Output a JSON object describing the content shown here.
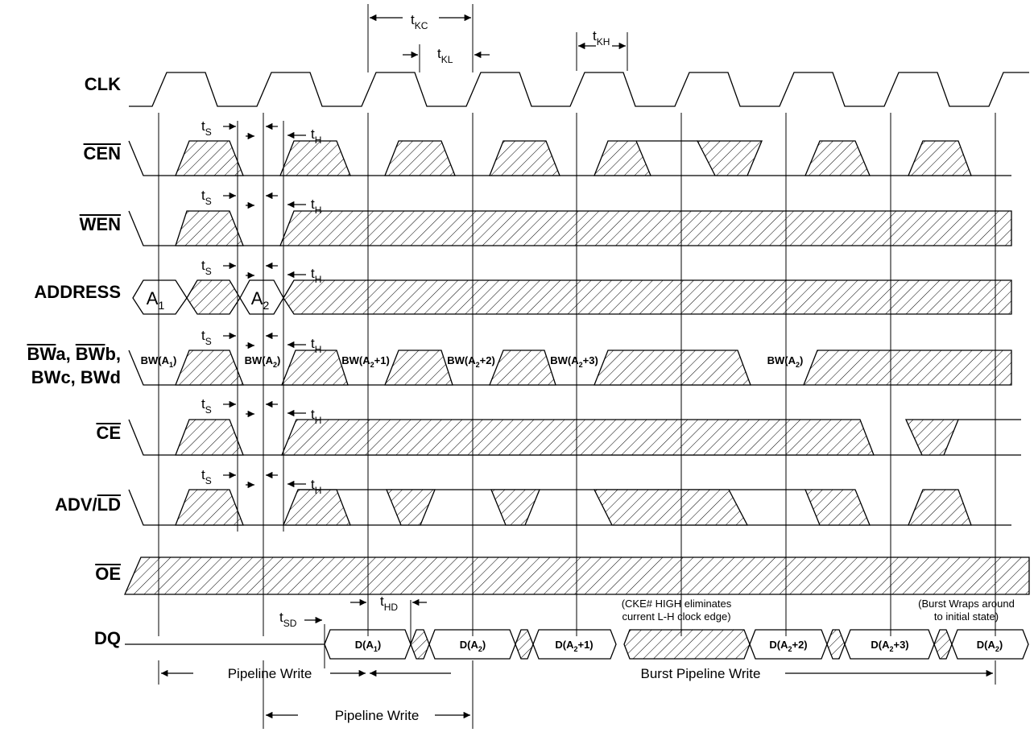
{
  "signals": [
    "CLK",
    "CEN",
    "WEN",
    "ADDRESS",
    "BWa, BWb,",
    "BWc, BWd",
    "CE",
    "ADV/LD",
    "OE",
    "DQ"
  ],
  "timing_labels": [
    {
      "text": "t",
      "sub": "KC"
    },
    {
      "text": "t",
      "sub": "KL"
    },
    {
      "text": "t",
      "sub": "KH"
    },
    {
      "text": "t",
      "sub": "S"
    },
    {
      "text": "t",
      "sub": "H"
    },
    {
      "text": "t",
      "sub": "S"
    },
    {
      "text": "t",
      "sub": "H"
    },
    {
      "text": "t",
      "sub": "S"
    },
    {
      "text": "t",
      "sub": "H"
    },
    {
      "text": "t",
      "sub": "S"
    },
    {
      "text": "t",
      "sub": "H"
    },
    {
      "text": "t",
      "sub": "S"
    },
    {
      "text": "t",
      "sub": "H"
    },
    {
      "text": "t",
      "sub": "S"
    },
    {
      "text": "t",
      "sub": "H"
    },
    {
      "text": "t",
      "sub": "SD"
    },
    {
      "text": "t",
      "sub": "HD"
    }
  ],
  "address_labels": [
    {
      "text": "A",
      "sub": "1"
    },
    {
      "text": "A",
      "sub": "2"
    }
  ],
  "bw_labels": [
    {
      "pre": "BW(A",
      "sub": "1",
      "post": ")"
    },
    {
      "pre": "BW(A",
      "sub": "2",
      "post": ")"
    },
    {
      "pre": "BW(A",
      "sub": "2",
      "post": "+1)"
    },
    {
      "pre": "BW(A",
      "sub": "2",
      "post": "+2)"
    },
    {
      "pre": "BW(A",
      "sub": "2",
      "post": "+3)"
    },
    {
      "pre": "BW(A",
      "sub": "2",
      "post": ")"
    }
  ],
  "dq_labels": [
    {
      "pre": "D(A",
      "sub": "1",
      "post": ")"
    },
    {
      "pre": "D(A",
      "sub": "2",
      "post": ")"
    },
    {
      "pre": "D(A",
      "sub": "2",
      "post": "+1)"
    },
    {
      "pre": "D(A",
      "sub": "2",
      "post": "+2)"
    },
    {
      "pre": "D(A",
      "sub": "2",
      "post": "+3)"
    },
    {
      "pre": "D(A",
      "sub": "2",
      "post": ")"
    }
  ],
  "notes": [
    [
      "(CKE# HIGH eliminates",
      "current L-H clock edge)"
    ],
    [
      "(Burst Wraps around",
      "to initial state)"
    ]
  ],
  "phases": [
    "Pipeline Write",
    "Burst Pipeline Write",
    "Pipeline Write"
  ]
}
